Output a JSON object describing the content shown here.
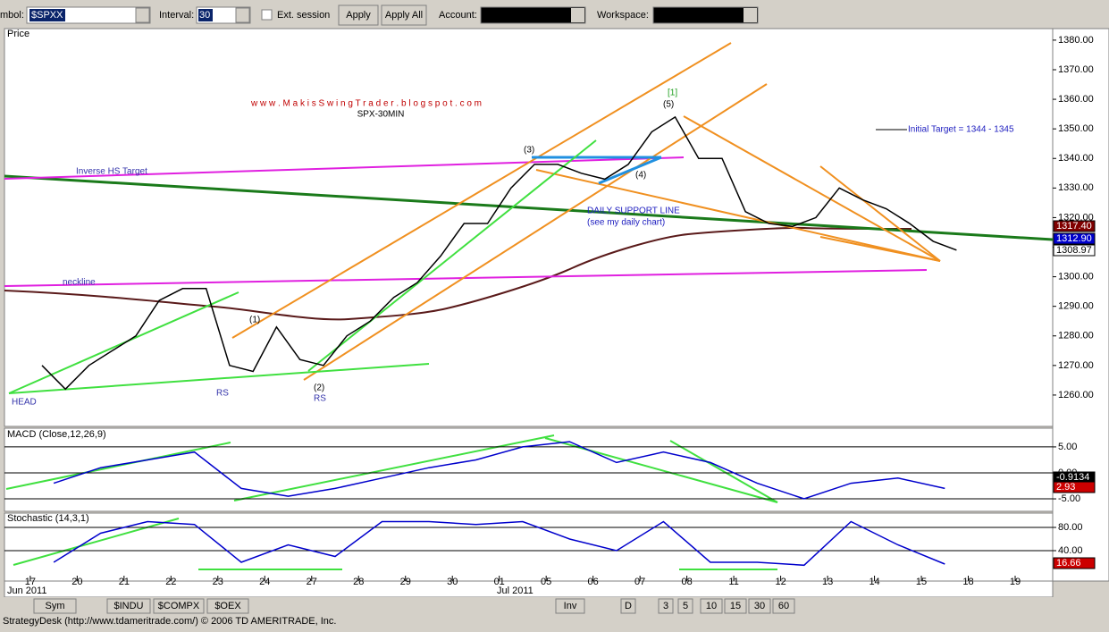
{
  "toolbar": {
    "symbol_label": "mbol:",
    "symbol": "$SPXX",
    "interval_label": "Interval:",
    "interval": "30",
    "ext_session": "Ext. session",
    "apply": "Apply",
    "apply_all": "Apply All",
    "account_label": "Account:",
    "workspace_label": "Workspace:"
  },
  "chart_data": [
    {
      "type": "line",
      "title": "Price",
      "color": "#000000",
      "xlim": [
        -0.55,
        21.8
      ],
      "ylim": [
        1249.4,
        1383.9
      ],
      "yticks": [
        {
          "value": 1380,
          "label": "1380.00"
        },
        {
          "value": 1370,
          "label": "1370.00"
        },
        {
          "value": 1360,
          "label": "1360.00"
        },
        {
          "value": 1350,
          "label": "1350.00"
        },
        {
          "value": 1340,
          "label": "1340.00"
        },
        {
          "value": 1330,
          "label": "1330.00"
        },
        {
          "value": 1320,
          "label": "1320.00"
        },
        {
          "value": 1310,
          "label": "1310.00"
        },
        {
          "value": 1300,
          "label": "1300.00"
        },
        {
          "value": 1290,
          "label": "1290.00"
        },
        {
          "value": 1280,
          "label": "1280.00"
        },
        {
          "value": 1270,
          "label": "1270.00"
        },
        {
          "value": 1260,
          "label": "1260.00"
        }
      ],
      "xticks": [
        {
          "value": 0,
          "label": "17"
        },
        {
          "value": 1,
          "label": "20"
        },
        {
          "value": 2,
          "label": "21"
        },
        {
          "value": 3,
          "label": "22"
        },
        {
          "value": 4,
          "label": "23"
        },
        {
          "value": 5,
          "label": "24"
        },
        {
          "value": 6,
          "label": "27"
        },
        {
          "value": 7,
          "label": "28"
        },
        {
          "value": 8,
          "label": "29"
        },
        {
          "value": 9,
          "label": "30"
        },
        {
          "value": 10,
          "label": "01"
        },
        {
          "value": 11,
          "label": "05"
        },
        {
          "value": 12,
          "label": "06"
        },
        {
          "value": 13,
          "label": "07"
        },
        {
          "value": 14,
          "label": "08"
        },
        {
          "value": 15,
          "label": "11"
        },
        {
          "value": 16,
          "label": "12"
        },
        {
          "value": 17,
          "label": "13"
        },
        {
          "value": 18,
          "label": "14"
        },
        {
          "value": 19,
          "label": "15"
        },
        {
          "value": 20,
          "label": "18"
        },
        {
          "value": 21,
          "label": "19"
        }
      ],
      "x": [
        0.25,
        0.75,
        1.25,
        1.75,
        2.25,
        2.75,
        3.25,
        3.75,
        4.25,
        4.75,
        5.25,
        5.75,
        6.25,
        6.75,
        7.25,
        7.75,
        8.25,
        8.75,
        9.25,
        9.75,
        10.25,
        10.75,
        11.25,
        11.75,
        12.25,
        12.75,
        13.25,
        13.75,
        14.25,
        14.75,
        15.25,
        15.75,
        16.25,
        16.75,
        17.25,
        17.75,
        18.25,
        18.75,
        19.25,
        19.75
      ],
      "values": [
        1270,
        1262,
        1270,
        1275,
        1280,
        1292,
        1296,
        1296,
        1270,
        1268,
        1283,
        1272,
        1270,
        1280,
        1285,
        1293,
        1298,
        1307,
        1318,
        1318,
        1330,
        1338,
        1338,
        1335,
        1333,
        1338,
        1349,
        1354,
        1340,
        1340,
        1322,
        1318,
        1317,
        1320,
        1330,
        1326,
        1323,
        1318,
        1312,
        1309
      ],
      "last_labels": [
        "1317.40",
        "1312.90",
        "1308.97"
      ],
      "annotations": [
        "w w w . M a k i s S w i n g T r a d e r . b l o g s p o t . c o m",
        "SPX-30MIN",
        "Inverse HS Target",
        "neckline",
        "HEAD",
        "RS",
        "RS",
        "(1)",
        "(2)",
        "(3)",
        "(4)",
        "(5)",
        "[1]",
        "DAILY SUPPORT LINE",
        "(see my daily chart)",
        "Initial Target = 1344 - 1345"
      ]
    },
    {
      "type": "line",
      "title": "MACD (Close,12,26,9)",
      "color": "#0000cc",
      "grid": true,
      "xlim": [
        -0.55,
        21.8
      ],
      "ylim": [
        -7.4,
        8.6
      ],
      "yticks": [
        {
          "value": 5,
          "label": "5.00"
        },
        {
          "value": 0,
          "label": "0.00"
        },
        {
          "value": -5,
          "label": "-5.00"
        }
      ],
      "x": [
        0.5,
        1.5,
        2.5,
        3.5,
        4.5,
        5.5,
        6.5,
        7.5,
        8.5,
        9.5,
        10.5,
        11.5,
        12.5,
        13.5,
        14.5,
        15.5,
        16.5,
        17.5,
        18.5,
        19.5
      ],
      "values": [
        -2,
        1,
        2.5,
        4,
        -3,
        -4.5,
        -3,
        -1,
        1,
        2.5,
        5,
        6,
        2,
        4,
        2,
        -2,
        -5,
        -2,
        -1,
        -3
      ],
      "last_labels": [
        "-0.9134",
        "2.93"
      ]
    },
    {
      "type": "line",
      "title": "Stochastic (14,3,1)",
      "color": "#0000cc",
      "grid": true,
      "xlim": [
        -0.55,
        21.8
      ],
      "ylim": [
        -12.3,
        104.6
      ],
      "yticks": [
        {
          "value": 80,
          "label": "80.00"
        },
        {
          "value": 40,
          "label": "40.00"
        }
      ],
      "x": [
        0.5,
        1.5,
        2.5,
        3.5,
        4.5,
        5.5,
        6.5,
        7.5,
        8.5,
        9.5,
        10.5,
        11.5,
        12.5,
        13.5,
        14.5,
        15.5,
        16.5,
        17.5,
        18.5,
        19.5
      ],
      "values": [
        20,
        70,
        90,
        85,
        20,
        50,
        30,
        90,
        90,
        85,
        90,
        60,
        40,
        90,
        20,
        20,
        15,
        90,
        50,
        17
      ],
      "last_labels": [
        "16.66"
      ]
    }
  ],
  "date_axis": {
    "months": [
      "Jun 2011",
      "Jul 2011"
    ]
  },
  "tabs": {
    "left": [
      "Sym",
      "$INDU",
      "$COMPX",
      "$OEX"
    ],
    "right": [
      "Inv",
      "D",
      "3",
      "5",
      "10",
      "15",
      "30",
      "60"
    ]
  },
  "status": "StrategyDesk (http://www.tdameritrade.com/) © 2006 TD AMERITRADE, Inc."
}
